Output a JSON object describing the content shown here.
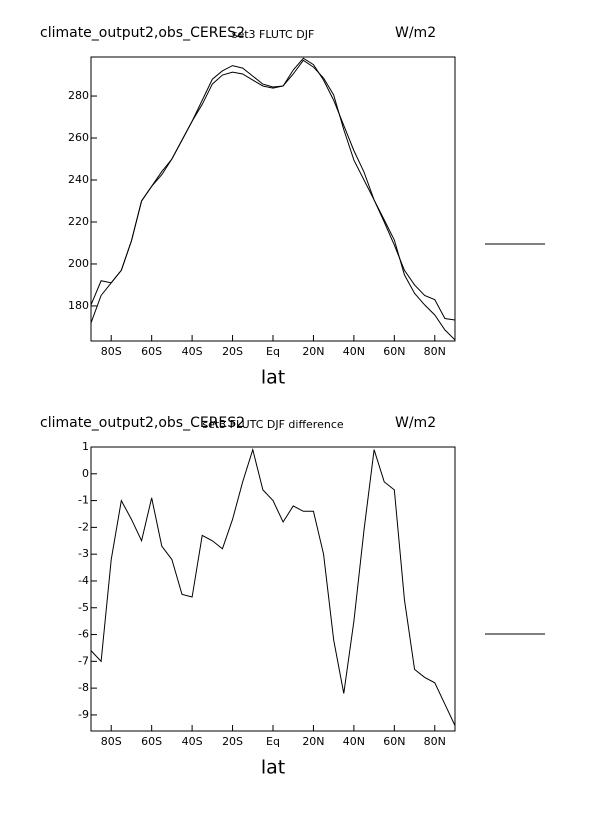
{
  "chart_data": [
    {
      "type": "line",
      "title": "climate_output2,obs_CERES2",
      "subtitle": "set3 FLUTC DJF",
      "units": "W/m2",
      "xlabel": "lat",
      "x": [
        -90,
        -85,
        -80,
        -75,
        -70,
        -65,
        -60,
        -55,
        -50,
        -45,
        -40,
        -35,
        -30,
        -25,
        -20,
        -15,
        -10,
        -5,
        0,
        5,
        10,
        15,
        20,
        25,
        30,
        35,
        40,
        45,
        50,
        55,
        60,
        65,
        70,
        75,
        80,
        85,
        90
      ],
      "series": [
        {
          "color": "#000000",
          "values": [
            171.9,
            185,
            191,
            197,
            211,
            230,
            237,
            244,
            250,
            259,
            268,
            278,
            288,
            292,
            294.5,
            293.3,
            289.5,
            285.7,
            284.3,
            284.8,
            292.4,
            298,
            295,
            287.6,
            278,
            266,
            254,
            243.8,
            230.5,
            221,
            211.4,
            194.8,
            186,
            180.5,
            175.7,
            168.6,
            163.8
          ]
        },
        {
          "color": "#000000",
          "values": [
            180.5,
            192,
            191,
            197,
            211,
            230,
            237,
            242.5,
            250,
            259,
            268,
            276,
            285.7,
            290,
            291.4,
            290.5,
            287.6,
            284.8,
            283.8,
            284.8,
            290.5,
            297,
            293.8,
            288.6,
            280.5,
            264,
            249.5,
            240,
            230.5,
            220,
            209,
            197,
            190,
            185,
            183,
            174,
            173.3
          ]
        }
      ],
      "xlim": [
        -90,
        90
      ],
      "xticks": [
        {
          "value": -80,
          "label": "80S"
        },
        {
          "value": -60,
          "label": "60S"
        },
        {
          "value": -40,
          "label": "40S"
        },
        {
          "value": -20,
          "label": "20S"
        },
        {
          "value": 0,
          "label": "Eq"
        },
        {
          "value": 20,
          "label": "20N"
        },
        {
          "value": 40,
          "label": "40N"
        },
        {
          "value": 60,
          "label": "60N"
        },
        {
          "value": 80,
          "label": "80N"
        }
      ],
      "ylim": [
        163.3,
        298.6
      ],
      "yticks": [
        180,
        200,
        220,
        240,
        260,
        280
      ]
    },
    {
      "type": "line",
      "title": "climate_output2,obs_CERES2",
      "subtitle": "set3 FLUTC DJF difference",
      "units": "W/m2",
      "xlabel": "lat",
      "x": [
        -90,
        -85,
        -80,
        -75,
        -70,
        -65,
        -60,
        -55,
        -50,
        -45,
        -40,
        -35,
        -30,
        -25,
        -20,
        -15,
        -10,
        -5,
        0,
        5,
        10,
        15,
        20,
        25,
        30,
        35,
        40,
        45,
        50,
        55,
        60,
        65,
        70,
        75,
        80,
        85,
        90
      ],
      "series": [
        {
          "color": "#000000",
          "values": [
            -6.6,
            -7,
            -3.2,
            -1,
            -1.7,
            -2.5,
            -0.9,
            -2.7,
            -3.2,
            -4.5,
            -4.6,
            -2.3,
            -2.5,
            -2.8,
            -1.7,
            -0.3,
            0.9,
            -0.6,
            -1,
            -1.8,
            -1.2,
            -1.4,
            -1.4,
            -3,
            -6.2,
            -8.2,
            -5.5,
            -2.1,
            0.9,
            -0.3,
            -0.6,
            -4.7,
            -7.3,
            -7.6,
            -7.8,
            -8.6,
            -9.4
          ]
        }
      ],
      "xlim": [
        -90,
        90
      ],
      "xticks": [
        {
          "value": -80,
          "label": "80S"
        },
        {
          "value": -60,
          "label": "60S"
        },
        {
          "value": -40,
          "label": "40S"
        },
        {
          "value": -20,
          "label": "20S"
        },
        {
          "value": 0,
          "label": "Eq"
        },
        {
          "value": 20,
          "label": "20N"
        },
        {
          "value": 40,
          "label": "40N"
        },
        {
          "value": 60,
          "label": "60N"
        },
        {
          "value": 80,
          "label": "80N"
        }
      ],
      "ylim": [
        -9.6,
        1.0
      ],
      "yticks": [
        -9,
        -8,
        -7,
        -6,
        -5,
        -4,
        -3,
        -2,
        -1,
        0,
        1
      ]
    }
  ]
}
